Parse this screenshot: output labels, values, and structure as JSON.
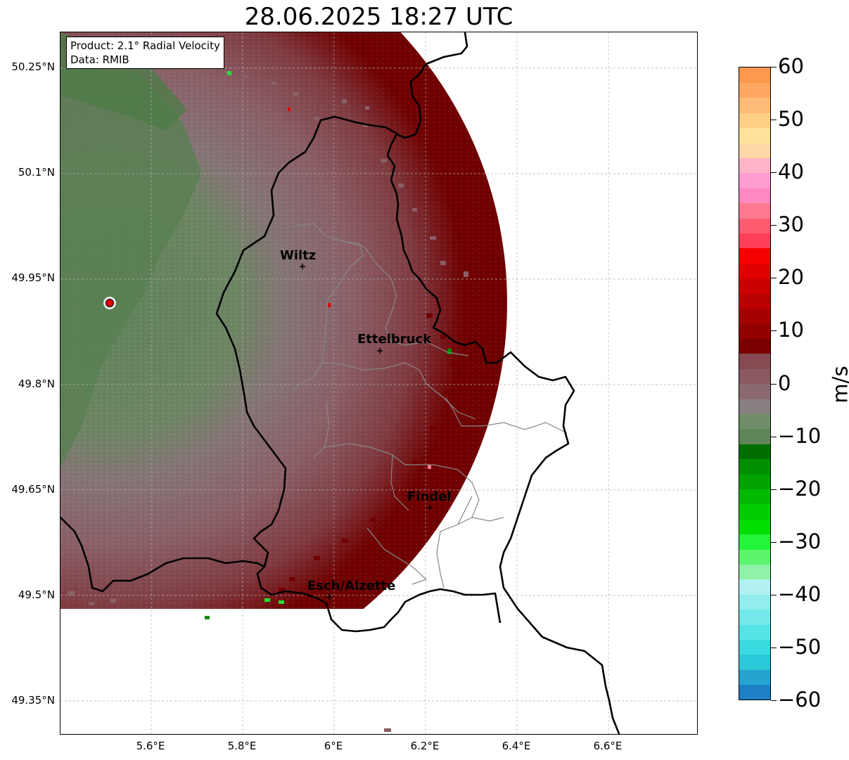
{
  "title": "28.06.2025 18:27 UTC",
  "info": {
    "product": "Product: 2.1° Radial Velocity",
    "data": "Data: RMIB"
  },
  "y_axis_labels": [
    "50.25°N",
    "50.1°N",
    "49.95°N",
    "49.8°N",
    "49.65°N",
    "49.5°N",
    "49.35°N"
  ],
  "x_axis_labels": [
    "5.6°E",
    "5.8°E",
    "6°E",
    "6.2°E",
    "6.4°E",
    "6.6°E"
  ],
  "cities": [
    "Wiltz",
    "Ettelbruck",
    "Findel",
    "Esch/Alzette"
  ],
  "colorbar": {
    "unit": "m/s",
    "tick_labels": [
      "60",
      "50",
      "40",
      "30",
      "20",
      "10",
      "0",
      "−10",
      "−20",
      "−30",
      "−40",
      "−50",
      "−60"
    ],
    "min": -60,
    "max": 60,
    "colors_bottom_to_top": [
      "#1e7fc5",
      "#24a4cf",
      "#2bc8d9",
      "#39dbe0",
      "#56e3e6",
      "#74e8ea",
      "#93ecee",
      "#b2f0f2",
      "#8ff2a8",
      "#5bf56e",
      "#22f53a",
      "#00e000",
      "#00cc00",
      "#00b800",
      "#00a300",
      "#008f00",
      "#006f00",
      "#5f8559",
      "#6f8e69",
      "#888080",
      "#8a6a70",
      "#8b5a60",
      "#864b50",
      "#7a0000",
      "#930000",
      "#a60000",
      "#bb0000",
      "#cc0000",
      "#e00000",
      "#f70000",
      "#ff4058",
      "#ff5c72",
      "#ff7a90",
      "#ff8ac2",
      "#ff9dd2",
      "#ffb3c6",
      "#ffd8a8",
      "#ffe39a",
      "#ffcf88",
      "#ffbc78",
      "#ffa862",
      "#ff9850"
    ]
  },
  "colors": {
    "velocity_positive_strong": "#700000",
    "velocity_positive_weak": "#8a5f66",
    "velocity_neutral": "#857476",
    "velocity_negative_weak": "#5f8359",
    "radar_site": "#e00000"
  }
}
